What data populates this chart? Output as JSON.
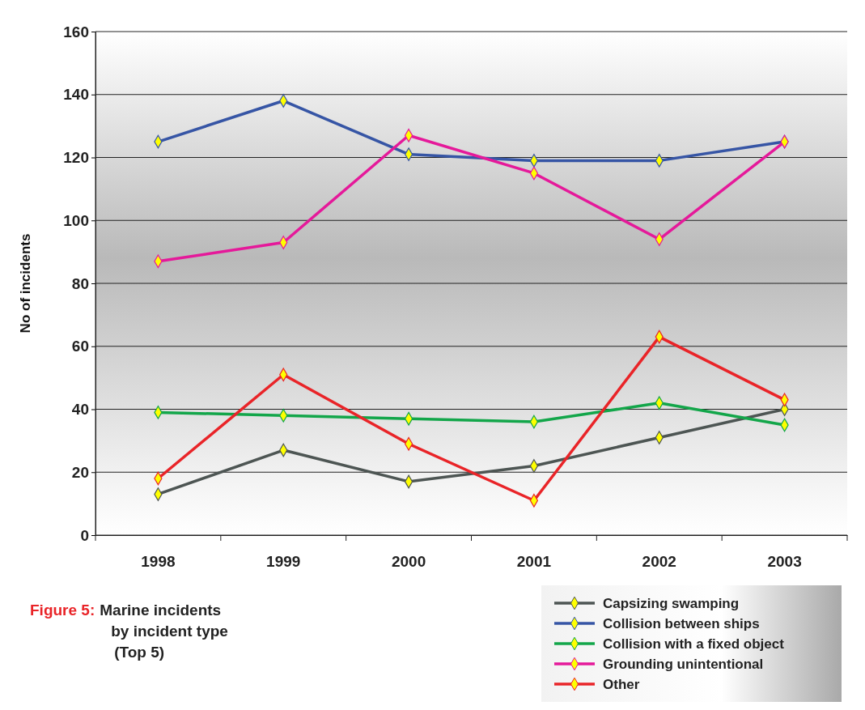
{
  "chart_data": {
    "type": "line",
    "title": "Marine incidents by incident type (Top 5)",
    "annotations": [
      "Figure 5:"
    ],
    "ylabel": "No of incidents",
    "categories": [
      "1998",
      "1999",
      "2000",
      "2001",
      "2002",
      "2003"
    ],
    "series": [
      {
        "name": "Capsizing swamping",
        "color": "#4d5553",
        "values": [
          13,
          27,
          17,
          22,
          31,
          40
        ]
      },
      {
        "name": "Collision between ships",
        "color": "#3655a5",
        "values": [
          125,
          138,
          121,
          119,
          119,
          125
        ]
      },
      {
        "name": "Collision with a fixed object",
        "color": "#13a64a",
        "values": [
          39,
          38,
          37,
          36,
          42,
          35
        ]
      },
      {
        "name": "Grounding unintentional",
        "color": "#e5199a",
        "values": [
          87,
          93,
          127,
          115,
          94,
          125
        ]
      },
      {
        "name": "Other",
        "color": "#e92428",
        "values": [
          18,
          51,
          29,
          11,
          63,
          43
        ]
      }
    ],
    "ylim": [
      0,
      160
    ],
    "yticks": [
      0,
      20,
      40,
      60,
      80,
      100,
      120,
      140,
      160
    ],
    "grid": "y",
    "legend": "bottom right",
    "marker": "diamond",
    "line_style": "solid"
  }
}
